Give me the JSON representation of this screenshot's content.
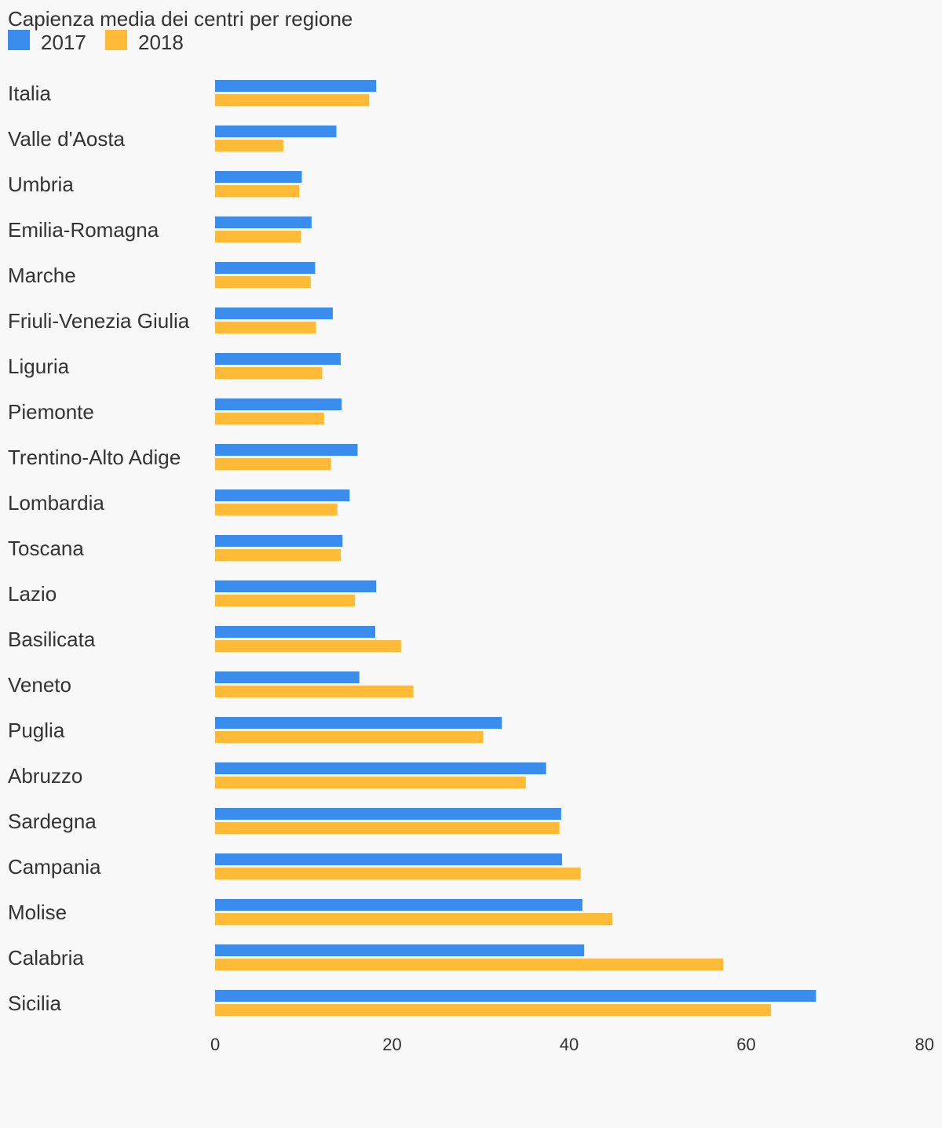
{
  "chart_data": {
    "type": "bar",
    "orientation": "horizontal",
    "title": "Capienza media dei centri per regione",
    "categories": [
      "Italia",
      "Valle d'Aosta",
      "Umbria",
      "Emilia-Romagna",
      "Marche",
      "Friuli-Venezia Giulia",
      "Liguria",
      "Piemonte",
      "Trentino-Alto Adige",
      "Lombardia",
      "Toscana",
      "Lazio",
      "Basilicata",
      "Veneto",
      "Puglia",
      "Abruzzo",
      "Sardegna",
      "Campania",
      "Molise",
      "Calabria",
      "Sicilia"
    ],
    "series": [
      {
        "name": "2017",
        "color": "#3a8ded",
        "values": [
          18.2,
          13.7,
          9.8,
          10.9,
          11.3,
          13.3,
          14.2,
          14.3,
          16.1,
          15.2,
          14.4,
          18.2,
          18.1,
          16.3,
          32.4,
          37.4,
          39.1,
          39.2,
          41.5,
          41.7,
          67.9
        ]
      },
      {
        "name": "2018",
        "color": "#ffbb38",
        "values": [
          17.4,
          7.7,
          9.5,
          9.7,
          10.8,
          11.4,
          12.1,
          12.3,
          13.1,
          13.8,
          14.2,
          15.8,
          21.0,
          22.4,
          30.3,
          35.1,
          38.9,
          41.3,
          44.9,
          57.4,
          62.8
        ]
      }
    ],
    "xlim": [
      0,
      80
    ],
    "xticks": [
      "0",
      "20",
      "40",
      "60",
      "80"
    ],
    "xlabel": "",
    "ylabel": "",
    "grid": false,
    "legend_position": "top-left"
  }
}
